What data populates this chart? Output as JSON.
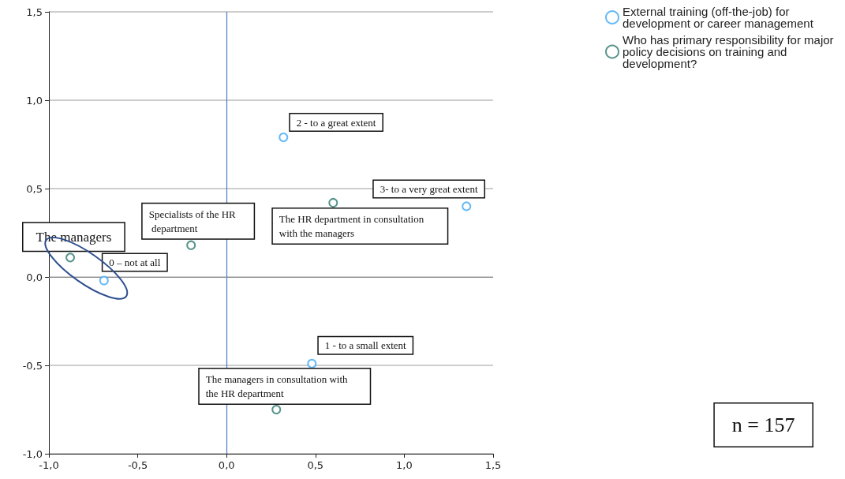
{
  "chart_data": {
    "type": "scatter",
    "series": [
      {
        "name": "External training (off-the-job) for development or career management",
        "color": "#3fa9f5",
        "x": [
          0.32,
          1.35,
          0.48,
          -0.69
        ],
        "values": [
          0.79,
          0.4,
          -0.49,
          -0.02
        ]
      },
      {
        "name": "Who has primary responsibility for major policy decisions on training and development?",
        "color": "#2e7b70",
        "x": [
          0.6,
          -0.2,
          -0.88,
          0.28
        ],
        "values": [
          0.42,
          0.18,
          0.11,
          -0.75
        ]
      }
    ],
    "xlim": [
      -1,
      1.5
    ],
    "ylim": [
      -1,
      1.5
    ],
    "xticks": [
      {
        "value": -1,
        "label": "-1,0"
      },
      {
        "value": -0.5,
        "label": "-0,5"
      },
      {
        "value": 0,
        "label": "0,0"
      },
      {
        "value": 0.5,
        "label": "0,5"
      },
      {
        "value": 1,
        "label": "1,0"
      },
      {
        "value": 1.5,
        "label": "1,5"
      }
    ],
    "yticks": [
      {
        "value": -1,
        "label": "-1,0"
      },
      {
        "value": -0.5,
        "label": "-0,5"
      },
      {
        "value": 0,
        "label": "0,0"
      },
      {
        "value": 0.5,
        "label": "0,5"
      },
      {
        "value": 1,
        "label": "1,0"
      },
      {
        "value": 1.5,
        "label": "1,5"
      }
    ],
    "grid": "y",
    "legend": "top right",
    "marker": "circle",
    "ref_lines": [
      {
        "axis": "x",
        "value": 0,
        "color": "#4a78d0"
      },
      {
        "axis": "y",
        "value": 0,
        "color": "#8c8c8c"
      }
    ],
    "annotations": [
      {
        "text": "2 - to a great extent",
        "x": 0.32,
        "y": 0.79
      },
      {
        "text": "3- to a very great extent",
        "x": 1.35,
        "y": 0.4
      },
      {
        "text": "1 - to a small extent",
        "x": 0.48,
        "y": -0.49
      },
      {
        "text": "0 – not at all",
        "x": -0.69,
        "y": -0.02
      },
      {
        "text": "The HR department in consultation with the managers",
        "x": 0.6,
        "y": 0.42
      },
      {
        "text": "Specialists of the HR department",
        "x": -0.2,
        "y": 0.18
      },
      {
        "text": "The managers",
        "x": -0.88,
        "y": 0.11
      },
      {
        "text": "The managers in consultation with the HR department",
        "x": 0.28,
        "y": -0.75
      },
      "n = 157"
    ]
  }
}
